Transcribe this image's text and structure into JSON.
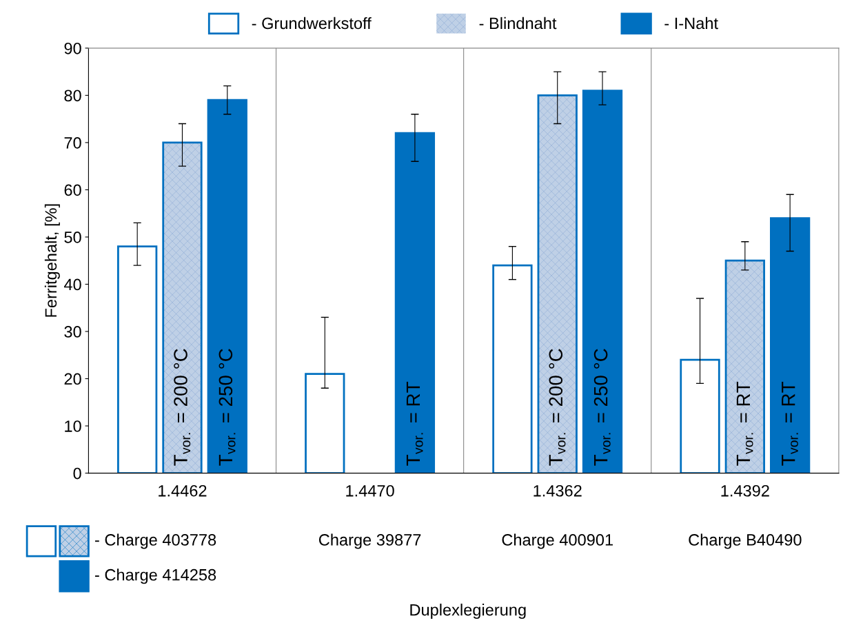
{
  "chart_data": {
    "type": "bar",
    "ylabel": "Ferritgehalt, [%]",
    "categories": [
      "1.4462",
      "1.4470",
      "1.4362",
      "1.4392"
    ],
    "series": [
      {
        "name": "- Grundwerkstoff",
        "color": "#ffffff",
        "values": [
          48,
          21,
          44,
          24
        ],
        "errors": [
          [
            44,
            53
          ],
          [
            18,
            33
          ],
          [
            41,
            48
          ],
          [
            19,
            37
          ]
        ]
      },
      {
        "name": "- Blindnaht",
        "color": "#bfd0e6",
        "values": [
          70,
          null,
          80,
          45
        ],
        "errors": [
          [
            65,
            74
          ],
          null,
          [
            74,
            85
          ],
          [
            43,
            49
          ]
        ]
      },
      {
        "name": "- I-Naht",
        "color": "#0070c0",
        "values": [
          79,
          72,
          81,
          54
        ],
        "errors": [
          [
            76,
            82
          ],
          [
            66,
            76
          ],
          [
            78,
            85
          ],
          [
            47,
            59
          ]
        ]
      }
    ],
    "ylim": [
      0,
      90
    ],
    "yticks": [
      0,
      10,
      20,
      30,
      40,
      50,
      60,
      70,
      80,
      90
    ],
    "grid": "x",
    "legend": "top",
    "annotations": [
      "T$_{vor.}$ = 200 °C",
      "T$_{vor.}$ = 250 °C",
      "T$_{vor.}$ = RT",
      "T$_{vor.}$ = 200 °C",
      "T$_{vor.}$ = 250 °C",
      "T$_{vor.}$ = RT",
      "T$_{vor.}$ = RT",
      "- Charge 403778",
      "Charge 39877",
      "Charge 400901",
      "Charge B40490",
      "- Charge 414258",
      "Duplexlegierung"
    ]
  }
}
